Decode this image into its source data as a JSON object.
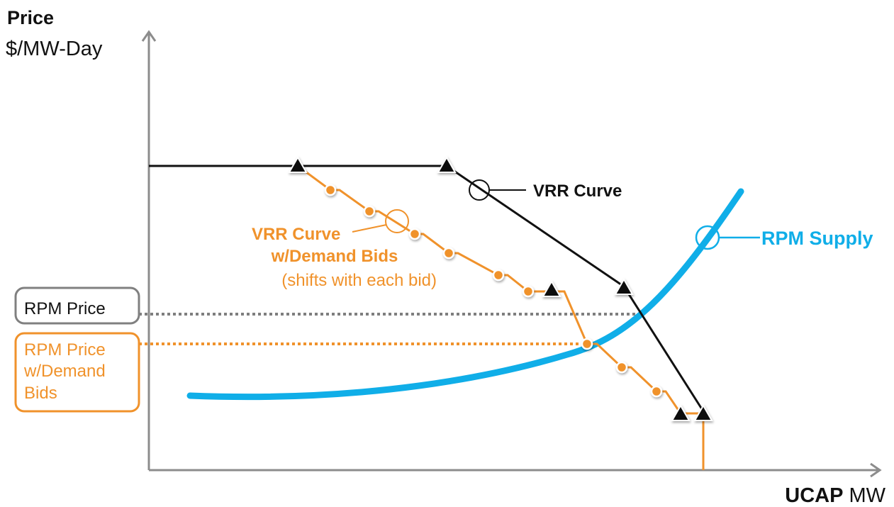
{
  "colors": {
    "axis": "#8c8c8c",
    "vrr": "#111111",
    "demand": "#f0922b",
    "supply": "#10aee8",
    "label_box": "#808080",
    "price_dots": "#7f7f7f"
  },
  "text": {
    "y_axis_title": "Price",
    "y_axis_unit": "$/MW-Day",
    "x_axis_title_bold": "UCAP",
    "x_axis_unit": "MW",
    "vrr_label": "VRR Curve",
    "supply_label": "RPM Supply",
    "demand_label_line1": "VRR Curve",
    "demand_label_line2": "w/Demand Bids",
    "demand_label_line3": "(shifts with each bid)",
    "rpm_price_label": "RPM Price",
    "rpm_price_demand_line1": "RPM Price",
    "rpm_price_demand_line2": "w/Demand",
    "rpm_price_demand_line3": "Bids"
  },
  "icons": {
    "vertex": "triangle-icon",
    "bid_step": "dot-icon",
    "callout": "circle-icon"
  }
}
